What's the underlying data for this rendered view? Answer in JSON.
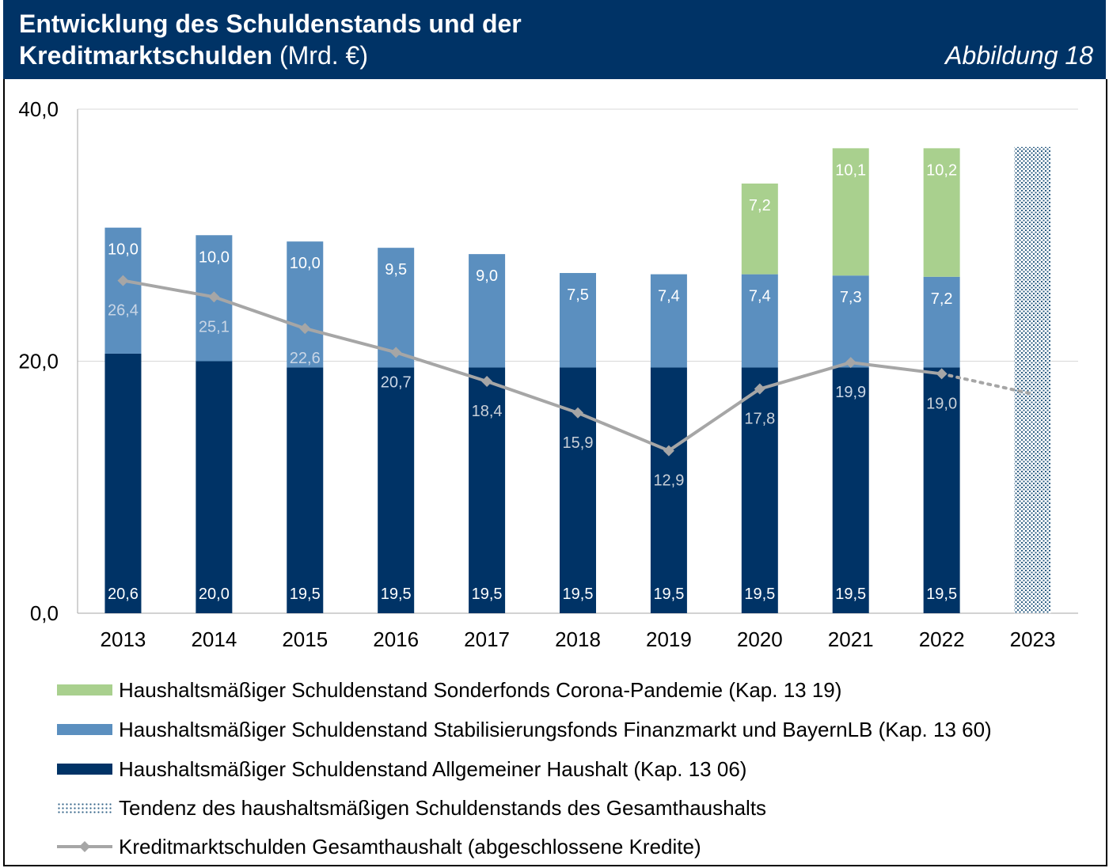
{
  "header": {
    "title_line1": "Entwicklung des Schuldenstands und der",
    "title_line2_bold": "Kreditmarktschulden",
    "title_line2_unit": "(Mrd. €)",
    "figure_label": "Abbildung 18"
  },
  "colors": {
    "header_bg": "#003366",
    "allgemein": "#003366",
    "stabilisierung": "#5b8fbf",
    "corona": "#a9d08e",
    "line": "#a6a6a6",
    "grid": "#d9d9d9"
  },
  "chart_data": {
    "type": "bar",
    "stacked": true,
    "title": "Entwicklung des Schuldenstands und der Kreditmarktschulden (Mrd. €)",
    "categories": [
      "2013",
      "2014",
      "2015",
      "2016",
      "2017",
      "2018",
      "2019",
      "2020",
      "2021",
      "2022",
      "2023"
    ],
    "ylim": [
      0,
      40
    ],
    "yticks": [
      0,
      20,
      40
    ],
    "ytick_labels": [
      "0,0",
      "20,0",
      "40,0"
    ],
    "grid": true,
    "series": [
      {
        "name": "Haushaltsmäßiger Schuldenstand Allgemeiner Haushalt (Kap. 13 06)",
        "kind": "bar",
        "values": [
          20.6,
          20.0,
          19.5,
          19.5,
          19.5,
          19.5,
          19.5,
          19.5,
          19.5,
          19.5,
          null
        ],
        "labels": [
          "20,6",
          "20,0",
          "19,5",
          "19,5",
          "19,5",
          "19,5",
          "19,5",
          "19,5",
          "19,5",
          "19,5",
          ""
        ]
      },
      {
        "name": "Haushaltsmäßiger Schuldenstand Stabilisierungsfonds Finanzmarkt und BayernLB (Kap. 13 60)",
        "kind": "bar",
        "values": [
          10.0,
          10.0,
          10.0,
          9.5,
          9.0,
          7.5,
          7.4,
          7.4,
          7.3,
          7.2,
          null
        ],
        "labels": [
          "10,0",
          "10,0",
          "10,0",
          "9,5",
          "9,0",
          "7,5",
          "7,4",
          "7,4",
          "7,3",
          "7,2",
          ""
        ]
      },
      {
        "name": "Haushaltsmäßiger Schuldenstand Sonderfonds Corona-Pandemie (Kap. 13 19)",
        "kind": "bar",
        "values": [
          null,
          null,
          null,
          null,
          null,
          null,
          null,
          7.2,
          10.1,
          10.2,
          null
        ],
        "labels": [
          "",
          "",
          "",
          "",
          "",
          "",
          "",
          "7,2",
          "10,1",
          "10,2",
          ""
        ]
      },
      {
        "name": "Tendenz des haushaltsmäßigen Schuldenstands des Gesamthaushalts",
        "kind": "bar-pattern",
        "values": [
          null,
          null,
          null,
          null,
          null,
          null,
          null,
          null,
          null,
          null,
          37.0
        ]
      },
      {
        "name": "Kreditmarktschulden Gesamthaushalt (abgeschlossene Kredite)",
        "kind": "line",
        "values": [
          26.4,
          25.1,
          22.6,
          20.7,
          18.4,
          15.9,
          12.9,
          17.8,
          19.9,
          19.0,
          17.4
        ],
        "labels": [
          "26,4",
          "25,1",
          "22,6",
          "20,7",
          "18,4",
          "15,9",
          "12,9",
          "17,8",
          "19,9",
          "19,0",
          ""
        ],
        "dotted_from_index": 9
      }
    ]
  },
  "legend": [
    {
      "key": "corona",
      "label": "Haushaltsmäßiger Schuldenstand Sonderfonds Corona-Pandemie (Kap. 13 19)"
    },
    {
      "key": "stabilisierung",
      "label": "Haushaltsmäßiger Schuldenstand Stabilisierungsfonds Finanzmarkt und BayernLB (Kap. 13 60)"
    },
    {
      "key": "allgemein",
      "label": "Haushaltsmäßiger Schuldenstand Allgemeiner Haushalt (Kap. 13 06)"
    },
    {
      "key": "tendenz",
      "label": "Tendenz des haushaltsmäßigen Schuldenstands des Gesamthaushalts"
    },
    {
      "key": "line",
      "label": "Kreditmarktschulden Gesamthaushalt (abgeschlossene Kredite)"
    }
  ]
}
